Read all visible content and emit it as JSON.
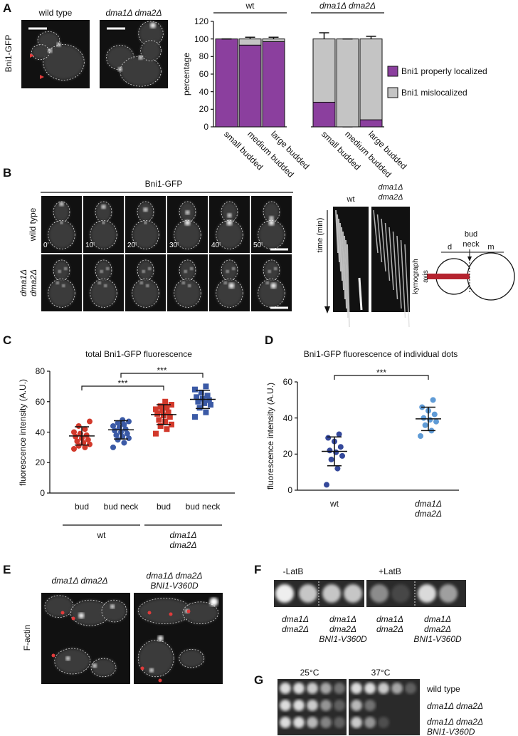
{
  "panel_labels": [
    "A",
    "B",
    "C",
    "D",
    "E",
    "F",
    "G"
  ],
  "panel_a": {
    "row_label": "Bni1-GFP",
    "image_labels": [
      "wild type",
      "dma1Δ dma2Δ"
    ]
  },
  "panel_b": {
    "title": "Bni1-GFP",
    "row_labels": [
      "wild type",
      "dma1Δ dma2Δ"
    ],
    "times": [
      "0'",
      "10'",
      "20'",
      "30'",
      "40'",
      "50'"
    ],
    "kymograph_labels": [
      "wt",
      "dma1Δ dma2Δ"
    ],
    "time_axis": "time (min)",
    "diagram": {
      "bud_neck": "bud neck",
      "d": "d",
      "m": "m",
      "axis": "kymograph axis"
    }
  },
  "chart_data": [
    {
      "type": "bar",
      "stacked": true,
      "ylabel": "percentage",
      "groups": [
        {
          "name": "wt",
          "categories": [
            "small budded",
            "medium budded",
            "large budded"
          ]
        },
        {
          "name": "dma1Δ dma2Δ",
          "categories": [
            "small budded",
            "medium budded",
            "large budded"
          ]
        }
      ],
      "series": [
        {
          "name": "Bni1 properly localized",
          "color": "#8b3f9e",
          "values": [
            100,
            93,
            97,
            28,
            0,
            8
          ],
          "errors": [
            0,
            2,
            1,
            4,
            0,
            2
          ]
        },
        {
          "name": "Bni1 mislocalized",
          "color": "#c4c4c4",
          "values": [
            0,
            7,
            3,
            72,
            100,
            92
          ],
          "errors": [
            0,
            2,
            2,
            7,
            0,
            3
          ]
        }
      ],
      "ylim": [
        0,
        120
      ],
      "yticks": [
        0,
        20,
        40,
        60,
        80,
        100,
        120
      ]
    },
    {
      "type": "dot",
      "title": "total Bni1-GFP fluorescence",
      "ylabel": "fluorescence intensity (A.U.)",
      "groups": [
        {
          "name": "wt",
          "categories": [
            "bud",
            "bud neck"
          ]
        },
        {
          "name": "dma1Δ dma2Δ",
          "categories": [
            "bud",
            "bud neck"
          ]
        }
      ],
      "series": [
        {
          "color": "#d2392b",
          "marker": "circle",
          "values": [
            29,
            30,
            31,
            32,
            33,
            34,
            35,
            36,
            37,
            38,
            39,
            40,
            42,
            44,
            47
          ]
        },
        {
          "color": "#3b5aa6",
          "marker": "circle",
          "values": [
            30,
            33,
            35,
            36,
            37,
            38,
            39,
            40,
            41,
            42,
            43,
            44,
            45,
            46,
            47,
            48
          ]
        },
        {
          "color": "#d2392b",
          "marker": "square",
          "values": [
            39,
            42,
            44,
            45,
            47,
            48,
            50,
            51,
            52,
            53,
            54,
            55,
            56,
            57,
            58,
            60
          ]
        },
        {
          "color": "#3b5aa6",
          "marker": "square",
          "values": [
            50,
            53,
            56,
            58,
            59,
            60,
            61,
            62,
            63,
            64,
            66,
            68,
            70
          ]
        }
      ],
      "means": [
        37.5,
        41.5,
        51.5,
        61.5
      ],
      "sds": [
        6,
        6,
        6.5,
        6
      ],
      "significance": [
        {
          "label": "***",
          "between": [
            0,
            2
          ]
        },
        {
          "label": "***",
          "between": [
            1,
            3
          ]
        }
      ],
      "ylim": [
        0,
        80
      ],
      "yticks": [
        0,
        20,
        40,
        60,
        80
      ]
    },
    {
      "type": "dot",
      "title": "Bni1-GFP fluorescence of individual dots",
      "ylabel": "fluorescence intensity (A.U.)",
      "groups": [
        {
          "categories": [
            "wt",
            "dma1Δ dma2Δ"
          ]
        }
      ],
      "series": [
        {
          "color": "#34489a",
          "marker": "circle",
          "values": [
            3,
            12,
            17,
            19,
            21,
            22,
            24,
            27,
            29,
            31
          ]
        },
        {
          "color": "#5f9bd6",
          "marker": "circle",
          "values": [
            30,
            33,
            36,
            38,
            39,
            40,
            42,
            44,
            46,
            50
          ]
        }
      ],
      "means": [
        21.5,
        39.5
      ],
      "sds": [
        8,
        6.5
      ],
      "significance": [
        {
          "label": "***",
          "between": [
            0,
            1
          ]
        }
      ],
      "ylim": [
        0,
        60
      ],
      "yticks": [
        0,
        20,
        40,
        60
      ]
    }
  ],
  "panel_e": {
    "row_label": "F-actin",
    "image_labels": [
      "dma1Δ dma2Δ",
      "dma1Δ dma2Δ BNI1-V360D"
    ]
  },
  "panel_f": {
    "conditions": [
      "-LatB",
      "+LatB"
    ],
    "strains": [
      "dma1Δ dma2Δ",
      "dma1Δ dma2Δ BNI1-V360D",
      "dma1Δ dma2Δ",
      "dma1Δ dma2Δ BNI1-V360D"
    ]
  },
  "panel_g": {
    "temperatures": [
      "25°C",
      "37°C"
    ],
    "strains": [
      "wild type",
      "dma1Δ dma2Δ",
      "dma1Δ dma2Δ BNI1-V360D"
    ]
  }
}
